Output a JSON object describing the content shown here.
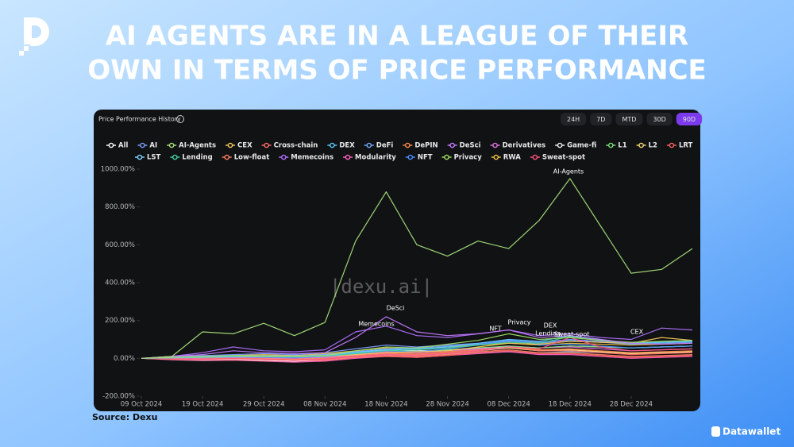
{
  "header": {
    "title_lines": [
      "AI AGENTS ARE IN A LEAGUE OF THEIR",
      "OWN IN TERMS OF PRICE PERFORMANCE"
    ]
  },
  "panel": {
    "heading": "Price Performance History",
    "time_ranges": [
      "24H",
      "7D",
      "MTD",
      "30D",
      "90D"
    ],
    "watermark": "|dexu.ai|"
  },
  "chart_data": {
    "type": "line",
    "categories": [
      "09 Oct 2024",
      null,
      "19 Oct 2024",
      null,
      "29 Oct 2024",
      null,
      "08 Nov 2024",
      null,
      "18 Nov 2024",
      null,
      "28 Nov 2024",
      null,
      "08 Dec 2024",
      null,
      "18 Dec 2024",
      null,
      "28 Dec 2024",
      null,
      null
    ],
    "ylim": [
      -200,
      1000
    ],
    "yticks": [
      {
        "value": -200,
        "label": "-200.00%"
      },
      {
        "value": 0,
        "label": "0.00%"
      },
      {
        "value": 200,
        "label": "200.00%"
      },
      {
        "value": 400,
        "label": "400.00%"
      },
      {
        "value": 600,
        "label": "600.00%"
      },
      {
        "value": 800,
        "label": "800.00%"
      },
      {
        "value": 1000,
        "label": "1000.00%"
      }
    ],
    "grid": false,
    "series": [
      {
        "name": "All",
        "color": "#ffffff",
        "values": [
          0,
          5,
          10,
          12,
          15,
          15,
          20,
          35,
          45,
          40,
          45,
          55,
          60,
          55,
          65,
          60,
          55,
          60,
          65
        ]
      },
      {
        "name": "AI",
        "color": "#7b9cff",
        "values": [
          0,
          8,
          15,
          20,
          25,
          20,
          30,
          50,
          70,
          60,
          70,
          80,
          95,
          85,
          100,
          90,
          80,
          85,
          90
        ]
      },
      {
        "name": "AI-Agents",
        "color": "#a6e07a",
        "values": [
          0,
          10,
          140,
          130,
          185,
          120,
          190,
          620,
          880,
          600,
          540,
          620,
          580,
          730,
          950,
          700,
          450,
          470,
          580
        ]
      },
      {
        "name": "CEX",
        "color": "#f5c85a",
        "values": [
          0,
          2,
          5,
          8,
          10,
          8,
          12,
          20,
          30,
          35,
          40,
          60,
          80,
          75,
          90,
          85,
          80,
          110,
          95
        ]
      },
      {
        "name": "Cross-chain",
        "color": "#ff6b6b",
        "values": [
          0,
          -5,
          -5,
          0,
          -5,
          -10,
          0,
          15,
          25,
          20,
          30,
          45,
          60,
          40,
          40,
          30,
          20,
          25,
          30
        ]
      },
      {
        "name": "DEX",
        "color": "#5ac8fa",
        "values": [
          0,
          3,
          8,
          10,
          12,
          10,
          15,
          30,
          45,
          50,
          60,
          80,
          100,
          90,
          120,
          100,
          80,
          85,
          90
        ]
      },
      {
        "name": "DeFi",
        "color": "#6fa8ff",
        "values": [
          0,
          5,
          10,
          12,
          14,
          12,
          20,
          35,
          50,
          55,
          65,
          75,
          90,
          80,
          95,
          85,
          75,
          80,
          85
        ]
      },
      {
        "name": "DePIN",
        "color": "#ff8a4d",
        "values": [
          0,
          -3,
          0,
          2,
          0,
          -5,
          5,
          20,
          30,
          25,
          35,
          50,
          60,
          45,
          50,
          40,
          30,
          35,
          40
        ]
      },
      {
        "name": "DeSci",
        "color": "#c47bff",
        "values": [
          0,
          10,
          20,
          40,
          30,
          25,
          30,
          110,
          220,
          140,
          120,
          130,
          150,
          110,
          120,
          100,
          80,
          75,
          80
        ]
      },
      {
        "name": "Derivatives",
        "color": "#e070e0",
        "values": [
          0,
          0,
          2,
          5,
          3,
          0,
          5,
          20,
          35,
          30,
          40,
          50,
          65,
          55,
          60,
          50,
          40,
          45,
          50
        ]
      },
      {
        "name": "Game-fi",
        "color": "#f0f0f0",
        "values": [
          0,
          -5,
          -8,
          -5,
          -10,
          -15,
          -5,
          10,
          20,
          15,
          25,
          40,
          55,
          40,
          45,
          35,
          25,
          30,
          35
        ]
      },
      {
        "name": "L1",
        "color": "#7ae07a",
        "values": [
          0,
          4,
          8,
          10,
          12,
          10,
          15,
          30,
          40,
          35,
          45,
          55,
          65,
          55,
          65,
          60,
          55,
          60,
          65
        ]
      },
      {
        "name": "L2",
        "color": "#f5d76e",
        "values": [
          0,
          -2,
          0,
          3,
          0,
          -5,
          0,
          15,
          25,
          20,
          30,
          45,
          55,
          40,
          45,
          35,
          25,
          30,
          35
        ]
      },
      {
        "name": "LRT",
        "color": "#ff6060",
        "values": [
          0,
          -5,
          -10,
          -8,
          -12,
          -15,
          -10,
          5,
          10,
          5,
          15,
          30,
          40,
          25,
          25,
          15,
          5,
          10,
          15
        ]
      },
      {
        "name": "LST",
        "color": "#7ad4ff",
        "values": [
          0,
          2,
          4,
          5,
          6,
          5,
          8,
          15,
          20,
          18,
          22,
          30,
          35,
          30,
          35,
          30,
          28,
          30,
          32
        ]
      },
      {
        "name": "Lending",
        "color": "#40d0a0",
        "values": [
          0,
          3,
          6,
          8,
          10,
          8,
          12,
          25,
          40,
          45,
          55,
          70,
          85,
          80,
          115,
          95,
          80,
          85,
          90
        ]
      },
      {
        "name": "Low-float",
        "color": "#ff8060",
        "values": [
          0,
          -5,
          -8,
          -5,
          -10,
          -15,
          -10,
          5,
          15,
          10,
          20,
          35,
          45,
          30,
          30,
          20,
          10,
          15,
          20
        ]
      },
      {
        "name": "Memecoins",
        "color": "#b070ff",
        "values": [
          0,
          10,
          30,
          60,
          40,
          35,
          45,
          140,
          170,
          120,
          110,
          130,
          150,
          120,
          130,
          110,
          100,
          160,
          150
        ]
      },
      {
        "name": "Modularity",
        "color": "#ff60c0",
        "values": [
          0,
          -8,
          -12,
          -10,
          -15,
          -20,
          -15,
          0,
          10,
          5,
          15,
          25,
          35,
          20,
          20,
          10,
          0,
          5,
          10
        ]
      },
      {
        "name": "NFT",
        "color": "#4a90ff",
        "values": [
          0,
          2,
          5,
          8,
          6,
          4,
          10,
          25,
          40,
          35,
          50,
          70,
          100,
          70,
          75,
          65,
          55,
          60,
          65
        ]
      },
      {
        "name": "Privacy",
        "color": "#a0e060",
        "values": [
          0,
          5,
          10,
          15,
          12,
          10,
          15,
          40,
          60,
          55,
          75,
          95,
          130,
          100,
          110,
          95,
          85,
          90,
          95
        ]
      },
      {
        "name": "RWA",
        "color": "#f0c040",
        "values": [
          0,
          5,
          10,
          15,
          20,
          15,
          25,
          40,
          55,
          50,
          60,
          70,
          80,
          70,
          80,
          75,
          70,
          75,
          80
        ]
      },
      {
        "name": "Sweat-spot",
        "color": "#ff5080",
        "values": [
          0,
          -3,
          -5,
          -2,
          -5,
          -10,
          -5,
          10,
          20,
          15,
          25,
          40,
          60,
          50,
          110,
          60,
          40,
          45,
          50
        ]
      }
    ],
    "annotations": [
      "AI-Agents",
      "DeSci",
      "Memecoins",
      "Privacy",
      "NFT",
      "DEX",
      "Lending",
      "Sweat-spot",
      "CEX"
    ]
  },
  "footer": {
    "source": "Source: Dexu",
    "brand": "Datawallet"
  }
}
